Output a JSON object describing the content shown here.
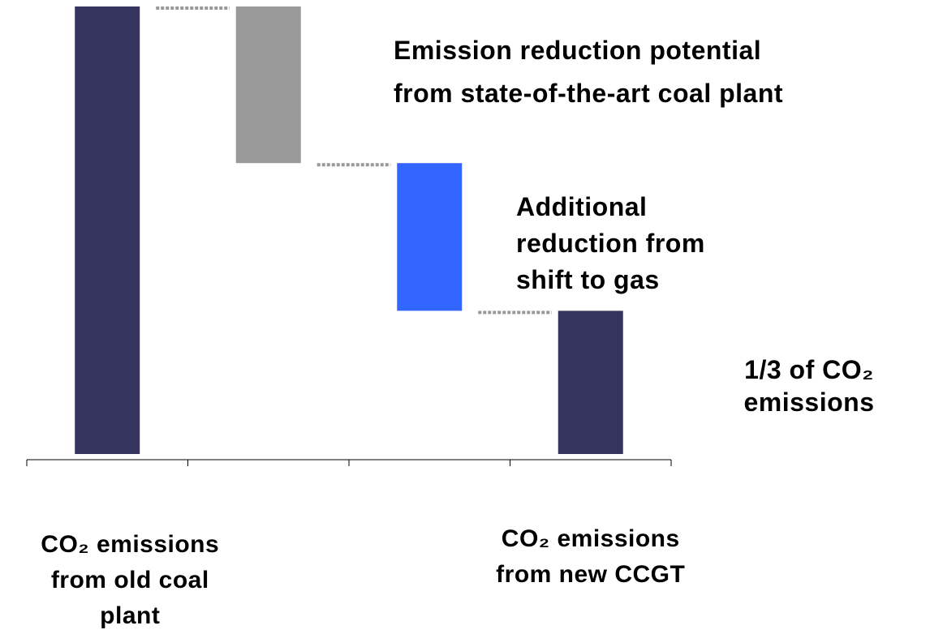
{
  "chart_data": {
    "type": "waterfall",
    "categories": [
      "CO₂ emissions\nfrom old coal\nplant",
      null,
      null,
      "CO₂ emissions\nfrom new CCGT"
    ],
    "values": [
      100,
      -35,
      -33,
      32
    ],
    "colors": [
      "#35355f",
      "#999999",
      "#3366ff",
      "#35355f"
    ],
    "ylim": [
      0,
      100
    ],
    "annotations": [
      "Emission reduction potential\nfrom state-of-the-art coal plant",
      "Additional\nreduction from\nshift to gas",
      "1/3 of CO₂\nemissions"
    ]
  }
}
